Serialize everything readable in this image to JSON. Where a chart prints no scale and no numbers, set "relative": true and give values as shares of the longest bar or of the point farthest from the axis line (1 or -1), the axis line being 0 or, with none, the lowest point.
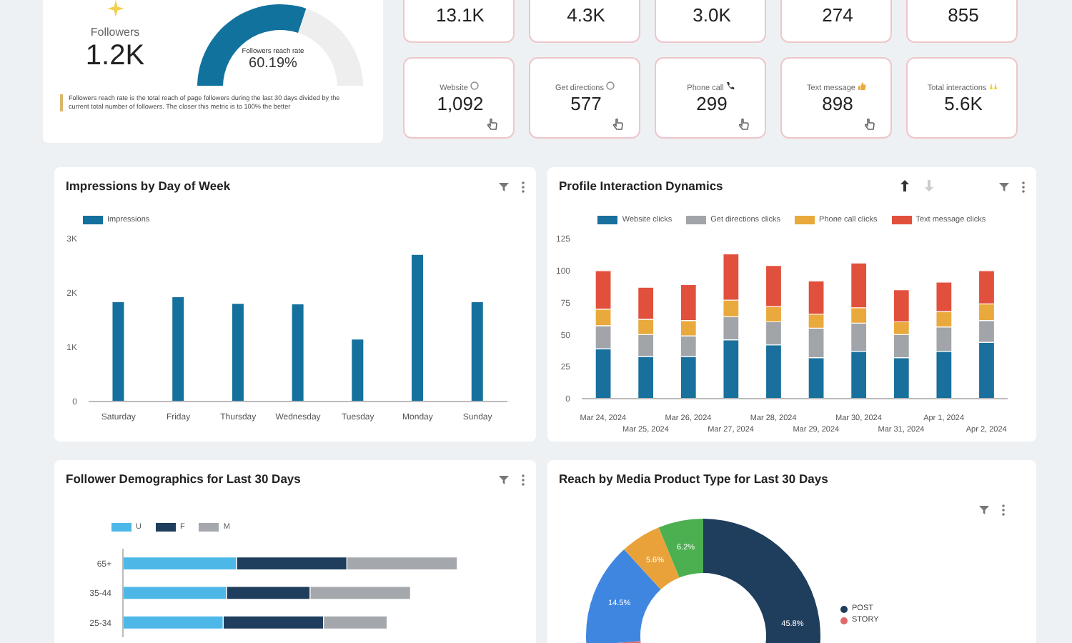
{
  "chart_data": [
    {
      "type": "other",
      "categories": [
        "Followers"
      ],
      "value_labels": [
        "1.2K"
      ]
    },
    {
      "type": "donut",
      "categories": [
        null,
        null
      ],
      "values": [
        60.19,
        39.81
      ],
      "colors": [
        "#12729e",
        "#eeeeee"
      ],
      "value_labels": [
        "60.19%",
        null
      ],
      "annotations": [
        "Followers reach rate",
        "Followers reach rate is the total reach of page followers during the last 30 days divided by the current total number of followers. The closer this metric is to 100% the better"
      ]
    },
    {
      "type": "other",
      "categories": [
        null,
        null,
        null,
        null,
        null,
        "Website",
        "Get directions",
        "Phone call",
        "Text message",
        "Total interactions"
      ],
      "value_labels": [
        "13.1K",
        "4.3K",
        "3.0K",
        "274",
        "855",
        "1,092",
        "577",
        "299",
        "898",
        "5.6K"
      ]
    },
    {
      "type": "bar",
      "title": "Impressions by Day of Week",
      "categories": [
        "Saturday",
        "Friday",
        "Thursday",
        "Wednesday",
        "Tuesday",
        "Monday",
        "Sunday"
      ],
      "series": [
        {
          "name": "Impressions",
          "color": "#14709c",
          "values": [
            1830,
            1920,
            1800,
            1790,
            1140,
            2700,
            1830
          ]
        }
      ],
      "ylim": [
        0,
        3000
      ],
      "yticks": [
        0,
        {
          "value": 1000,
          "label": "1K"
        },
        {
          "value": 2000,
          "label": "2K"
        },
        {
          "value": 3000,
          "label": "3K"
        }
      ],
      "legend": "top left"
    },
    {
      "type": "bar",
      "title": "Profile Interaction Dynamics",
      "stacked": true,
      "categories": [
        "Mar 24, 2024",
        "Mar 25, 2024",
        "Mar 26, 2024",
        "Mar 27, 2024",
        "Mar 28, 2024",
        "Mar 29, 2024",
        "Mar 30, 2024",
        "Mar 31, 2024",
        "Apr 1, 2024",
        "Apr 2, 2024"
      ],
      "series": [
        {
          "name": "Website clicks",
          "color": "#19709d",
          "values": [
            39,
            33,
            33,
            46,
            42,
            32,
            37,
            32,
            37,
            44
          ]
        },
        {
          "name": "Get directions clicks",
          "color": "#a1a5a9",
          "values": [
            18,
            17,
            16,
            18,
            18,
            23,
            22,
            18,
            19,
            17
          ]
        },
        {
          "name": "Phone call clicks",
          "color": "#e9a93c",
          "values": [
            13,
            12,
            12,
            13,
            12,
            11,
            12,
            10,
            12,
            13
          ]
        },
        {
          "name": "Text message clicks",
          "color": "#e1503d",
          "values": [
            30,
            25,
            28,
            36,
            32,
            26,
            35,
            25,
            23,
            26
          ]
        }
      ],
      "ylim": [
        0,
        125
      ],
      "yticks": [
        0,
        25,
        50,
        75,
        100,
        125
      ],
      "legend": "top"
    },
    {
      "type": "bar",
      "title": "Follower Demographics for Last 30 Days",
      "orientation": "horizontal",
      "stacked": true,
      "relative": true,
      "categories": [
        "65+",
        "35-44",
        "25-34"
      ],
      "series": [
        {
          "name": "U",
          "color": "#4db8e8",
          "values": [
            0.34,
            0.31,
            0.3
          ]
        },
        {
          "name": "F",
          "color": "#1f3d5c",
          "values": [
            0.33,
            0.25,
            0.3
          ]
        },
        {
          "name": "M",
          "color": "#a4a8ac",
          "values": [
            0.33,
            0.3,
            0.19
          ]
        }
      ],
      "legend": "top left"
    },
    {
      "type": "donut",
      "title": "Reach by Media Product Type for Last 30 Days",
      "categories": [
        "POST",
        "STORY",
        null,
        null,
        null
      ],
      "values": [
        45.8,
        27.9,
        14.5,
        5.6,
        6.2
      ],
      "colors": [
        "#1f3d5c",
        "#e06a6a",
        "#3f86e0",
        "#e9a23a",
        "#4caf50"
      ],
      "value_labels": [
        "45.8%",
        null,
        "14.5%",
        "5.6%",
        "6.2%"
      ],
      "legend": "right"
    }
  ]
}
